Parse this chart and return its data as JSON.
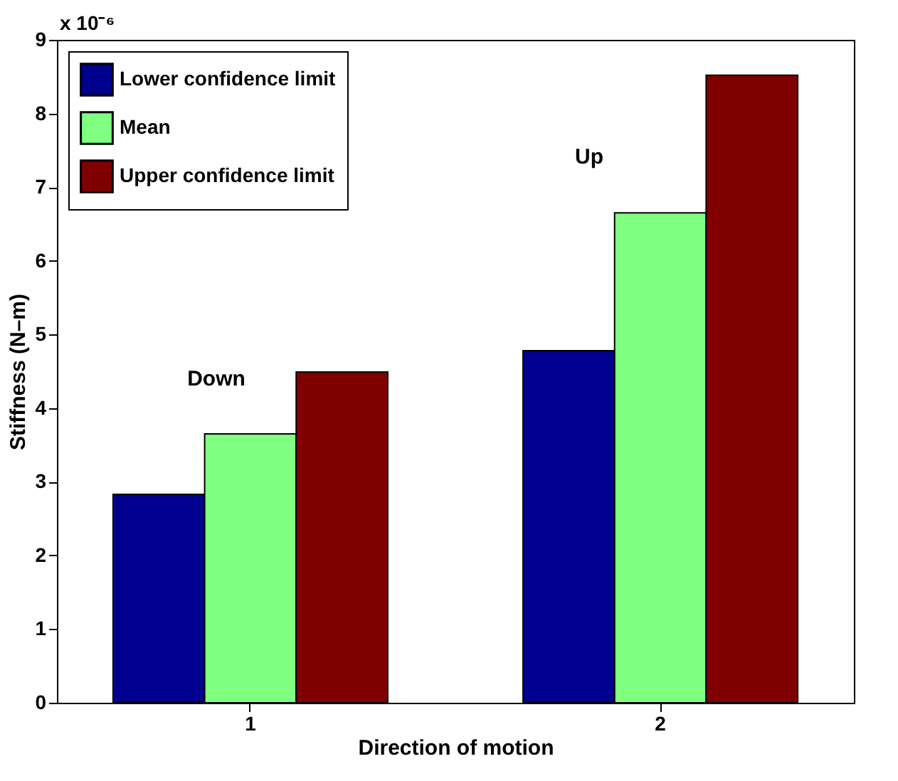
{
  "chart_data": {
    "type": "bar",
    "xlabel": "Direction of motion",
    "ylabel": "Stiffness (N–m)",
    "categories": [
      "1",
      "2"
    ],
    "series": [
      {
        "name": "Lower confidence limit",
        "color": "#00008f",
        "values": [
          2.83,
          4.78
        ]
      },
      {
        "name": "Mean",
        "color": "#80ff80",
        "values": [
          3.65,
          6.65
        ]
      },
      {
        "name": "Upper confidence limit",
        "color": "#800000",
        "values": [
          4.49,
          8.52
        ]
      }
    ],
    "ylim": [
      0,
      9
    ],
    "yticks": [
      0,
      1,
      2,
      3,
      4,
      5,
      6,
      7,
      8,
      9
    ],
    "grid": false,
    "legend": "top left",
    "annotations": [
      "x 10⁻⁶",
      "Down",
      "Up"
    ]
  }
}
